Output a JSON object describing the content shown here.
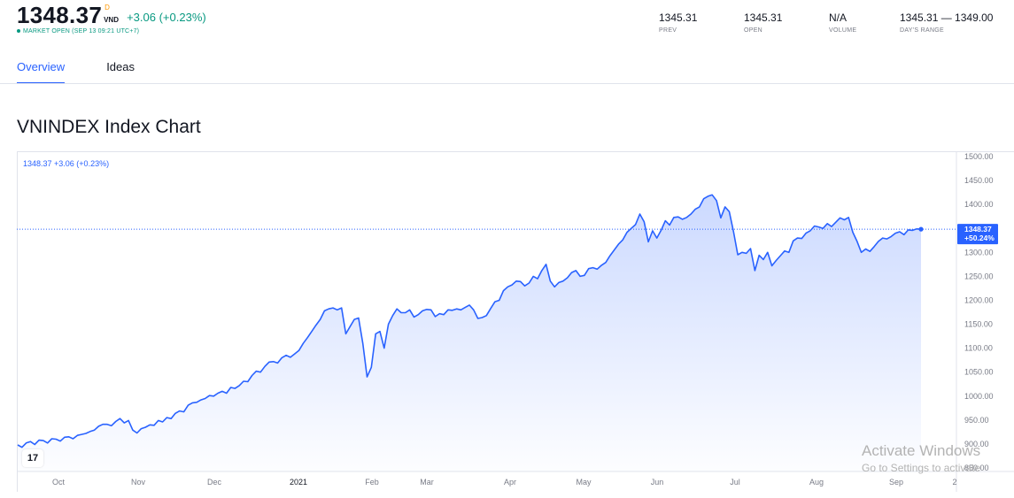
{
  "quote": {
    "price": "1348.37",
    "price_flag": "D",
    "currency": "VND",
    "change": "+3.06 (+0.23%)",
    "status": "MARKET OPEN (SEP 13 09:21 UTC+7)"
  },
  "stats": [
    {
      "value": "1345.31",
      "label": "PREV"
    },
    {
      "value": "1345.31",
      "label": "OPEN"
    },
    {
      "value": "N/A",
      "label": "VOLUME"
    },
    {
      "value": "1345.31 — 1349.00",
      "label": "DAY'S RANGE"
    }
  ],
  "tabs": [
    {
      "label": "Overview",
      "active": true
    },
    {
      "label": "Ideas",
      "active": false
    }
  ],
  "chart_title": "VNINDEX Index Chart",
  "chart_legend": "1348.37  +3.06 (+0.23%)",
  "colors": {
    "line": "#2962ff",
    "up": "#089981",
    "accent": "#2962ff"
  },
  "watermark": {
    "line1": "Activate Windows",
    "line2": "Go to Settings to activate"
  },
  "chart_data": {
    "type": "area",
    "price_label": "1348.37",
    "pct_label": "+50.24%",
    "ylim": [
      850,
      1500
    ],
    "y_ticks": [
      "1500.00",
      "1450.00",
      "1400.00",
      "1350.00",
      "1300.00",
      "1250.00",
      "1200.00",
      "1150.00",
      "1100.00",
      "1050.00",
      "1000.00",
      "950.00",
      "900.00",
      "850.00"
    ],
    "x_ticks": [
      "Oct",
      "Nov",
      "Dec",
      "2021",
      "Feb",
      "Mar",
      "Apr",
      "May",
      "Jun",
      "Jul",
      "Aug",
      "Sep",
      "2"
    ],
    "series": [
      {
        "values": [
          898,
          893,
          902,
          905,
          899,
          908,
          907,
          902,
          911,
          910,
          906,
          914,
          915,
          911,
          918,
          920,
          922,
          926,
          929,
          937,
          941,
          941,
          938,
          947,
          953,
          944,
          949,
          929,
          923,
          932,
          935,
          940,
          939,
          949,
          946,
          955,
          953,
          964,
          969,
          967,
          981,
          986,
          987,
          992,
          995,
          1001,
          1000,
          1006,
          1010,
          1006,
          1018,
          1016,
          1022,
          1031,
          1030,
          1043,
          1052,
          1050,
          1062,
          1071,
          1072,
          1069,
          1080,
          1085,
          1081,
          1088,
          1095,
          1110,
          1122,
          1135,
          1148,
          1160,
          1178,
          1182,
          1184,
          1180,
          1184,
          1130,
          1145,
          1160,
          1163,
          1110,
          1040,
          1060,
          1130,
          1135,
          1100,
          1150,
          1168,
          1182,
          1174,
          1174,
          1180,
          1165,
          1170,
          1178,
          1181,
          1180,
          1166,
          1172,
          1170,
          1180,
          1179,
          1182,
          1180,
          1185,
          1190,
          1180,
          1162,
          1164,
          1168,
          1183,
          1197,
          1200,
          1220,
          1228,
          1232,
          1240,
          1239,
          1230,
          1236,
          1250,
          1245,
          1262,
          1275,
          1240,
          1228,
          1237,
          1240,
          1247,
          1258,
          1262,
          1250,
          1252,
          1266,
          1268,
          1265,
          1273,
          1279,
          1293,
          1305,
          1317,
          1326,
          1342,
          1350,
          1358,
          1380,
          1364,
          1322,
          1345,
          1330,
          1346,
          1366,
          1357,
          1373,
          1374,
          1369,
          1373,
          1380,
          1390,
          1395,
          1412,
          1417,
          1420,
          1408,
          1372,
          1395,
          1385,
          1343,
          1295,
          1300,
          1298,
          1308,
          1262,
          1294,
          1285,
          1300,
          1272,
          1283,
          1293,
          1303,
          1300,
          1324,
          1330,
          1329,
          1340,
          1345,
          1355,
          1353,
          1350,
          1360,
          1354,
          1363,
          1372,
          1368,
          1373,
          1342,
          1323,
          1300,
          1307,
          1302,
          1312,
          1323,
          1330,
          1328,
          1333,
          1340,
          1343,
          1337,
          1347,
          1346,
          1349,
          1348.37
        ]
      }
    ]
  }
}
